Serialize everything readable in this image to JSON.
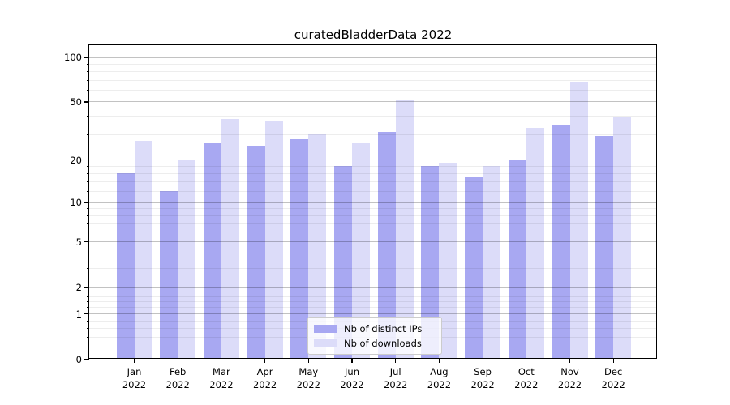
{
  "chart_data": {
    "type": "bar",
    "title": "curatedBladderData 2022",
    "categories": [
      "Jan",
      "Feb",
      "Mar",
      "Apr",
      "May",
      "Jun",
      "Jul",
      "Aug",
      "Sep",
      "Oct",
      "Nov",
      "Dec"
    ],
    "x_tick_year": "2022",
    "series": [
      {
        "name": "Nb of distinct IPs",
        "color": "#a8a8f2",
        "values": [
          16,
          12,
          26,
          25,
          28,
          18,
          31,
          18,
          15,
          20,
          35,
          29
        ]
      },
      {
        "name": "Nb of downloads",
        "color": "#dcdcf9",
        "values": [
          27,
          20,
          38,
          37,
          30,
          26,
          51,
          19,
          18,
          33,
          68,
          39
        ]
      }
    ],
    "yscale": "log10(value+1)",
    "ylim": [
      0,
      121
    ],
    "yticks": [
      0,
      1,
      2,
      5,
      10,
      20,
      50,
      100
    ],
    "yticks_minor": [
      0.2,
      0.4,
      0.6,
      0.8,
      1.2,
      1.4,
      1.6,
      1.8,
      3,
      4,
      6,
      7,
      8,
      9,
      12,
      14,
      16,
      18,
      30,
      40,
      60,
      70,
      80,
      90
    ],
    "grid": "major+minor horizontal",
    "legend_position": "lower center",
    "colors": {
      "background": "#ffffff",
      "spine": "#000000",
      "grid_major": "#c2c2c2",
      "grid_minor": "#ededed"
    }
  }
}
